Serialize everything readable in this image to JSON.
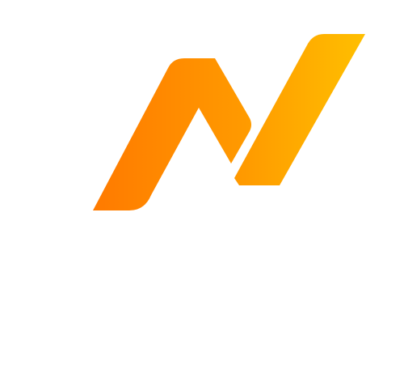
{
  "logo": {
    "icon": "stylized-n-logo-icon",
    "colors": {
      "gradient_start": "#ff7a00",
      "gradient_mid": "#ff9a00",
      "gradient_end": "#ffc000",
      "background": "#ffffff"
    }
  }
}
